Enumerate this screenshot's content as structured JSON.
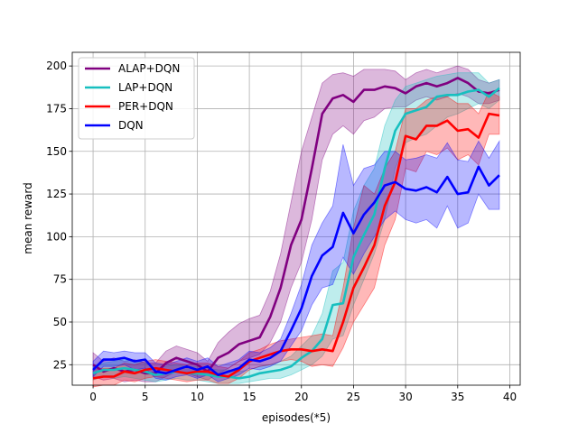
{
  "chart_data": {
    "type": "line",
    "title": "",
    "xlabel": "episodes(*5)",
    "ylabel": "mean reward",
    "xlim": [
      -2,
      41
    ],
    "ylim": [
      13,
      208
    ],
    "xticks": [
      0,
      5,
      10,
      15,
      20,
      25,
      30,
      35,
      40
    ],
    "yticks": [
      25,
      50,
      75,
      100,
      125,
      150,
      175,
      200
    ],
    "grid": true,
    "legend_position": "top-left",
    "series": [
      {
        "name": "ALAP+DQN",
        "color": "#800080",
        "x": [
          0,
          1,
          2,
          3,
          4,
          5,
          6,
          7,
          8,
          9,
          10,
          11,
          12,
          13,
          14,
          15,
          16,
          17,
          18,
          19,
          20,
          21,
          22,
          23,
          24,
          25,
          26,
          27,
          28,
          29,
          30,
          31,
          32,
          33,
          34,
          35,
          36,
          37,
          38,
          39
        ],
        "y": [
          25,
          21,
          23,
          21,
          22,
          20,
          20,
          26,
          29,
          27,
          25,
          21,
          29,
          32,
          37,
          39,
          41,
          53,
          70,
          95,
          110,
          140,
          172,
          181,
          183,
          179,
          186,
          186,
          188,
          187,
          184,
          188,
          190,
          188,
          190,
          193,
          190,
          185,
          184,
          186
        ],
        "lower": [
          18,
          16,
          17,
          15,
          16,
          15,
          15,
          18,
          21,
          20,
          18,
          16,
          20,
          23,
          27,
          29,
          31,
          38,
          50,
          70,
          85,
          110,
          145,
          160,
          165,
          160,
          168,
          170,
          175,
          176,
          176,
          180,
          182,
          180,
          182,
          184,
          182,
          178,
          178,
          180
        ],
        "upper": [
          32,
          27,
          29,
          27,
          28,
          26,
          26,
          33,
          36,
          34,
          32,
          27,
          38,
          44,
          49,
          52,
          54,
          68,
          90,
          120,
          150,
          170,
          190,
          195,
          196,
          194,
          198,
          198,
          198,
          197,
          192,
          196,
          198,
          196,
          198,
          200,
          198,
          192,
          190,
          192
        ]
      },
      {
        "name": "LAP+DQN",
        "color": "#17bfbf",
        "x": [
          0,
          1,
          2,
          3,
          4,
          5,
          6,
          7,
          8,
          9,
          10,
          11,
          12,
          13,
          14,
          15,
          16,
          17,
          18,
          19,
          20,
          21,
          22,
          23,
          24,
          25,
          26,
          27,
          28,
          29,
          30,
          31,
          32,
          33,
          34,
          35,
          36,
          37,
          38,
          39
        ],
        "y": [
          20,
          22,
          22,
          23,
          22,
          21,
          19,
          20,
          21,
          20,
          20,
          19,
          18,
          18,
          17,
          18,
          20,
          21,
          22,
          24,
          29,
          33,
          40,
          60,
          61,
          88,
          101,
          113,
          140,
          162,
          172,
          174,
          176,
          182,
          183,
          183,
          185,
          186,
          182,
          187
        ],
        "lower": [
          16,
          18,
          17,
          18,
          17,
          16,
          15,
          16,
          17,
          16,
          16,
          15,
          14,
          14,
          14,
          15,
          16,
          17,
          17,
          19,
          22,
          25,
          30,
          40,
          42,
          60,
          75,
          90,
          110,
          140,
          155,
          158,
          160,
          165,
          170,
          172,
          175,
          178,
          175,
          180
        ],
        "upper": [
          24,
          26,
          27,
          28,
          27,
          26,
          23,
          24,
          25,
          24,
          24,
          23,
          22,
          22,
          21,
          22,
          24,
          25,
          27,
          30,
          36,
          42,
          55,
          80,
          85,
          115,
          130,
          140,
          165,
          180,
          188,
          190,
          192,
          194,
          195,
          196,
          196,
          196,
          190,
          192
        ]
      },
      {
        "name": "PER+DQN",
        "color": "#ff0000",
        "x": [
          0,
          1,
          2,
          3,
          4,
          5,
          6,
          7,
          8,
          9,
          10,
          11,
          12,
          13,
          14,
          15,
          16,
          17,
          18,
          19,
          20,
          21,
          22,
          23,
          24,
          25,
          26,
          27,
          28,
          29,
          30,
          31,
          32,
          33,
          34,
          35,
          36,
          37,
          38,
          39
        ],
        "y": [
          17,
          18,
          18,
          21,
          20,
          22,
          23,
          22,
          21,
          20,
          21,
          21,
          19,
          18,
          22,
          27,
          29,
          31,
          33,
          34,
          34,
          33,
          34,
          33,
          50,
          70,
          82,
          95,
          118,
          132,
          159,
          157,
          165,
          165,
          168,
          162,
          163,
          158,
          172,
          171
        ],
        "lower": [
          12,
          13,
          13,
          16,
          15,
          17,
          18,
          17,
          16,
          15,
          16,
          16,
          14,
          14,
          17,
          22,
          24,
          25,
          27,
          28,
          27,
          24,
          25,
          24,
          35,
          50,
          60,
          70,
          95,
          110,
          140,
          138,
          150,
          148,
          152,
          145,
          148,
          142,
          160,
          160
        ],
        "upper": [
          22,
          23,
          23,
          26,
          25,
          27,
          28,
          27,
          26,
          25,
          26,
          26,
          24,
          23,
          27,
          32,
          34,
          37,
          39,
          40,
          41,
          42,
          43,
          42,
          70,
          105,
          130,
          125,
          140,
          150,
          175,
          175,
          180,
          182,
          182,
          178,
          178,
          172,
          185,
          182
        ]
      },
      {
        "name": "DQN",
        "color": "#0000ff",
        "x": [
          0,
          1,
          2,
          3,
          4,
          5,
          6,
          7,
          8,
          9,
          10,
          11,
          12,
          13,
          14,
          15,
          16,
          17,
          18,
          19,
          20,
          21,
          22,
          23,
          24,
          25,
          26,
          27,
          28,
          29,
          30,
          31,
          32,
          33,
          34,
          35,
          36,
          37,
          38,
          39
        ],
        "y": [
          22,
          28,
          28,
          29,
          27,
          28,
          21,
          20,
          22,
          24,
          22,
          24,
          19,
          21,
          23,
          28,
          27,
          29,
          33,
          45,
          58,
          77,
          89,
          94,
          114,
          102,
          113,
          120,
          130,
          132,
          128,
          127,
          129,
          126,
          135,
          125,
          126,
          141,
          130,
          136
        ],
        "lower": [
          18,
          24,
          24,
          25,
          22,
          23,
          17,
          16,
          18,
          19,
          17,
          19,
          15,
          17,
          19,
          23,
          22,
          24,
          27,
          36,
          45,
          60,
          70,
          72,
          88,
          78,
          90,
          100,
          110,
          115,
          110,
          108,
          110,
          105,
          118,
          105,
          108,
          125,
          116,
          116
        ],
        "upper": [
          27,
          33,
          32,
          33,
          32,
          32,
          26,
          25,
          27,
          29,
          27,
          29,
          24,
          26,
          28,
          33,
          32,
          35,
          40,
          55,
          72,
          95,
          108,
          118,
          154,
          130,
          140,
          142,
          150,
          150,
          145,
          146,
          148,
          146,
          155,
          145,
          144,
          156,
          146,
          156
        ]
      }
    ]
  }
}
